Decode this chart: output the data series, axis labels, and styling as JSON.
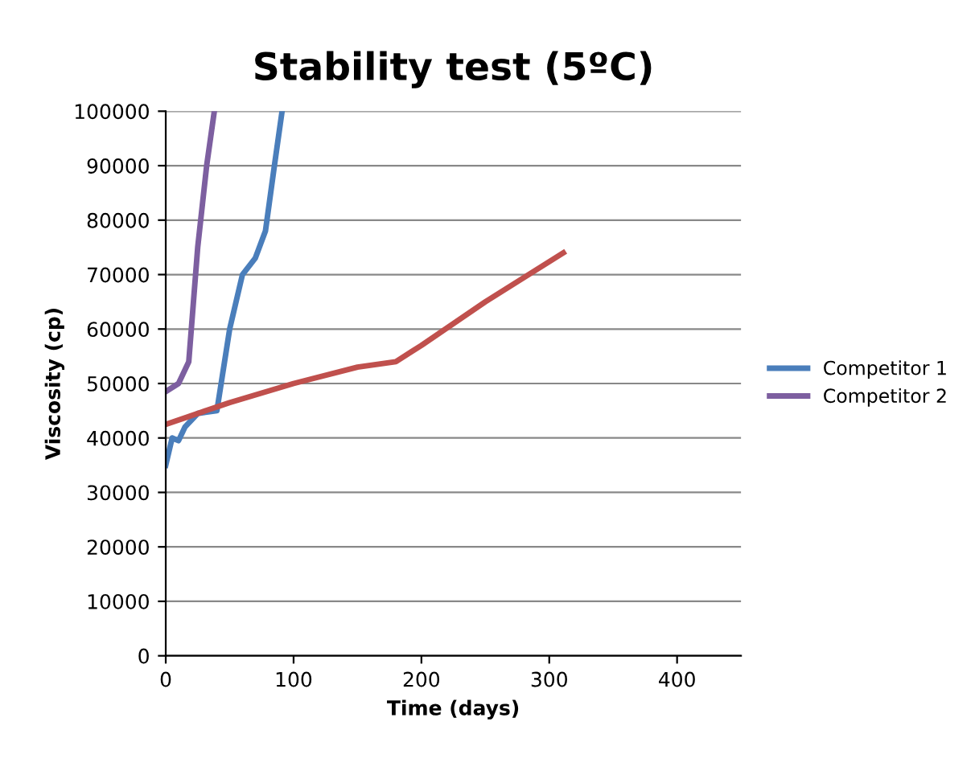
{
  "chart_data": {
    "type": "line",
    "title": "Stability test (5ºC)",
    "xlabel": "Time (days)",
    "ylabel": "Viscosity (cp)",
    "xlim": [
      0,
      450
    ],
    "xticks": [
      0,
      100,
      200,
      300,
      400
    ],
    "ylim": [
      0,
      100000
    ],
    "yticks": [
      0,
      10000,
      20000,
      30000,
      40000,
      50000,
      60000,
      70000,
      80000,
      90000,
      100000
    ],
    "grid": "y",
    "legend": "right",
    "marker": "none",
    "line_style": "solid",
    "series": [
      {
        "name": "Competitor 1",
        "color": "#4a7ebb",
        "x": [
          0,
          5,
          10,
          15,
          25,
          40,
          50,
          60,
          70,
          78,
          85,
          91
        ],
        "values": [
          35000,
          40000,
          39500,
          42000,
          44500,
          45000,
          60000,
          70000,
          73000,
          78000,
          90000,
          100000
        ]
      },
      {
        "name": "Competitor 2",
        "color": "#7d5fa0",
        "x": [
          0,
          10,
          18,
          25,
          32,
          38
        ],
        "values": [
          48500,
          50000,
          54000,
          75000,
          90000,
          100000
        ]
      },
      {
        "color": "#c0504d",
        "x": [
          0,
          50,
          100,
          150,
          180,
          200,
          250,
          311
        ],
        "values": [
          42500,
          46500,
          50000,
          53000,
          54000,
          57000,
          65000,
          74000
        ]
      }
    ]
  }
}
